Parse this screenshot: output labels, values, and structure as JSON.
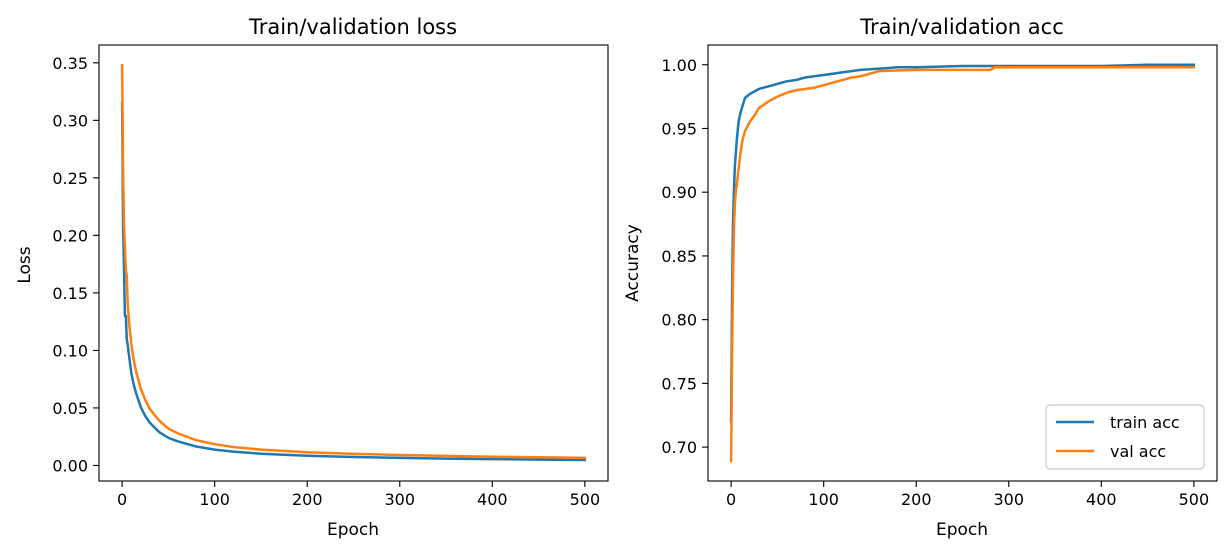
{
  "chart_data": [
    {
      "type": "line",
      "title": "Train/validation loss",
      "xlabel": "Epoch",
      "ylabel": "Loss",
      "xlim": [
        -25,
        525
      ],
      "ylim": [
        -0.0135,
        0.3655
      ],
      "xticks": [
        0,
        100,
        200,
        300,
        400,
        500
      ],
      "yticks": [
        0.0,
        0.05,
        0.1,
        0.15,
        0.2,
        0.25,
        0.3,
        0.35
      ],
      "ytick_decimals": 2,
      "grid": false,
      "series": [
        {
          "color": "#1f77b4",
          "x": [
            0,
            1,
            2,
            3,
            4,
            5,
            6,
            8,
            10,
            12,
            15,
            20,
            25,
            30,
            40,
            50,
            60,
            80,
            100,
            120,
            150,
            200,
            250,
            300,
            350,
            400,
            450,
            500
          ],
          "y": [
            0.315,
            0.21,
            0.17,
            0.13,
            0.13,
            0.11,
            0.105,
            0.092,
            0.08,
            0.072,
            0.063,
            0.051,
            0.043,
            0.037,
            0.029,
            0.024,
            0.021,
            0.0165,
            0.0138,
            0.012,
            0.0102,
            0.0085,
            0.0074,
            0.0066,
            0.006,
            0.0055,
            0.0051,
            0.0048
          ]
        },
        {
          "color": "#ff7f0e",
          "x": [
            0,
            1,
            2,
            3,
            4,
            5,
            6,
            8,
            10,
            12,
            15,
            20,
            25,
            30,
            40,
            50,
            60,
            80,
            100,
            120,
            150,
            200,
            250,
            300,
            350,
            400,
            450,
            500
          ],
          "y": [
            0.348,
            0.26,
            0.21,
            0.19,
            0.17,
            0.165,
            0.14,
            0.12,
            0.105,
            0.094,
            0.082,
            0.067,
            0.057,
            0.049,
            0.039,
            0.032,
            0.028,
            0.022,
            0.0185,
            0.016,
            0.0138,
            0.0115,
            0.0101,
            0.0091,
            0.0083,
            0.0076,
            0.0071,
            0.0066
          ]
        }
      ]
    },
    {
      "type": "line",
      "title": "Train/validation acc",
      "xlabel": "Epoch",
      "ylabel": "Accuracy",
      "xlim": [
        -25,
        525
      ],
      "ylim": [
        0.6734,
        1.0155
      ],
      "xticks": [
        0,
        100,
        200,
        300,
        400,
        500
      ],
      "yticks": [
        0.7,
        0.75,
        0.8,
        0.85,
        0.9,
        0.95,
        1.0
      ],
      "ytick_decimals": 2,
      "grid": false,
      "legend_position": "bottom-right",
      "series": [
        {
          "name": "train acc",
          "color": "#1f77b4",
          "x": [
            0,
            1,
            2,
            3,
            4,
            5,
            6,
            8,
            10,
            12,
            15,
            20,
            25,
            30,
            40,
            50,
            60,
            70,
            80,
            90,
            100,
            120,
            140,
            160,
            180,
            200,
            250,
            300,
            400,
            450,
            500
          ],
          "y": [
            0.72,
            0.82,
            0.875,
            0.9,
            0.92,
            0.93,
            0.94,
            0.955,
            0.962,
            0.967,
            0.974,
            0.977,
            0.979,
            0.981,
            0.983,
            0.985,
            0.987,
            0.988,
            0.99,
            0.991,
            0.992,
            0.994,
            0.996,
            0.997,
            0.998,
            0.998,
            0.999,
            0.999,
            0.999,
            1.0,
            1.0
          ]
        },
        {
          "name": "val acc",
          "color": "#ff7f0e",
          "x": [
            0,
            1,
            2,
            3,
            4,
            5,
            6,
            8,
            10,
            12,
            15,
            20,
            25,
            30,
            40,
            50,
            60,
            70,
            80,
            90,
            100,
            110,
            120,
            130,
            140,
            150,
            160,
            200,
            250,
            280,
            285,
            300,
            400,
            500
          ],
          "y": [
            0.689,
            0.77,
            0.83,
            0.87,
            0.89,
            0.9,
            0.905,
            0.918,
            0.93,
            0.94,
            0.948,
            0.955,
            0.96,
            0.966,
            0.971,
            0.975,
            0.978,
            0.98,
            0.981,
            0.982,
            0.984,
            0.986,
            0.988,
            0.99,
            0.991,
            0.993,
            0.995,
            0.996,
            0.996,
            0.996,
            0.998,
            0.998,
            0.998,
            0.998
          ]
        }
      ]
    }
  ]
}
